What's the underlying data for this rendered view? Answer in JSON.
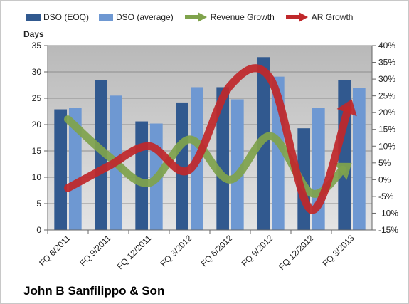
{
  "chart_data": {
    "type": "bar+line",
    "categories": [
      "FQ 6/2011",
      "FQ 9/2011",
      "FQ 12/2011",
      "FQ 3/2012",
      "FQ 6/2012",
      "FQ 9/2012",
      "FQ 12/2012",
      "FQ 3/2013"
    ],
    "series": [
      {
        "name": "DSO (EOQ)",
        "kind": "bar",
        "axis": "left",
        "color": "#31598f",
        "values": [
          22.9,
          28.4,
          20.6,
          24.2,
          27.1,
          32.8,
          19.3,
          28.4
        ]
      },
      {
        "name": "DSO (average)",
        "kind": "bar",
        "axis": "left",
        "color": "#6e98d2",
        "values": [
          23.2,
          25.5,
          20.2,
          27.1,
          24.8,
          29.1,
          23.2,
          27.0
        ]
      },
      {
        "name": "Revenue Growth",
        "kind": "line-arrow",
        "axis": "right",
        "color": "#7fa34c",
        "values": [
          18,
          7,
          -1,
          12,
          0,
          13,
          -4,
          5
        ]
      },
      {
        "name": "AR Growth",
        "kind": "line-arrow",
        "axis": "right",
        "color": "#c0282b",
        "values": [
          -2.5,
          4,
          10,
          3,
          28,
          30,
          -9,
          24
        ]
      }
    ],
    "ylabel": "Days",
    "ylim": [
      0,
      35
    ],
    "yticks": [
      "0",
      "5",
      "10",
      "15",
      "20",
      "25",
      "30",
      "35"
    ],
    "y2lim": [
      -15,
      40
    ],
    "y2ticks": [
      "-15%",
      "-10%",
      "-5%",
      "0%",
      "5%",
      "10%",
      "15%",
      "20%",
      "25%",
      "30%",
      "35%",
      "40%"
    ],
    "grid": true,
    "legend_position": "top",
    "plot_background": "#c9c9c9",
    "title": ""
  },
  "footer": {
    "company": "John B Sanfilippo & Son"
  }
}
